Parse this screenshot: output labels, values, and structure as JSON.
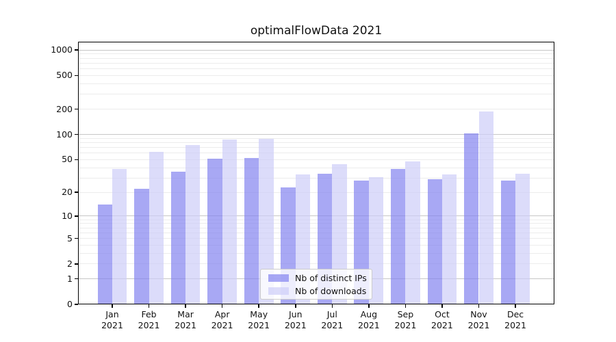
{
  "chart_data": {
    "type": "bar",
    "title": "optimalFlowData 2021",
    "categories": [
      "Jan 2021",
      "Feb 2021",
      "Mar 2021",
      "Apr 2021",
      "May 2021",
      "Jun 2021",
      "Jul 2021",
      "Aug 2021",
      "Sep 2021",
      "Oct 2021",
      "Nov 2021",
      "Dec 2021"
    ],
    "series": [
      {
        "name": "Nb of distinct IPs",
        "color": "#8383f0",
        "alpha": 0.7,
        "values": [
          14,
          22,
          36,
          51,
          52,
          23,
          34,
          28,
          39,
          29,
          104,
          28
        ]
      },
      {
        "name": "Nb of downloads",
        "color": "#cdcdf8",
        "alpha": 0.7,
        "values": [
          39,
          62,
          75,
          87,
          88,
          33,
          44,
          31,
          48,
          33,
          188,
          34
        ]
      }
    ],
    "yscale": "log1p",
    "yticks": [
      0,
      1,
      2,
      5,
      10,
      20,
      50,
      100,
      200,
      500,
      1000
    ],
    "ytick_labels": [
      "0",
      "1",
      "2",
      "5",
      "10",
      "20",
      "50",
      "100",
      "200",
      "500",
      "1000"
    ],
    "ylim": [
      0,
      1260
    ],
    "xlabel": "",
    "ylabel": "",
    "grid": true,
    "legend_position": "lower center"
  },
  "colors": {
    "major_grid": "#c6c6c6",
    "minor_grid": "#ececec",
    "spine": "#000000",
    "text": "#111111",
    "legend_border": "#cccccc",
    "legend_bg": "rgba(255,255,255,0.8)"
  }
}
